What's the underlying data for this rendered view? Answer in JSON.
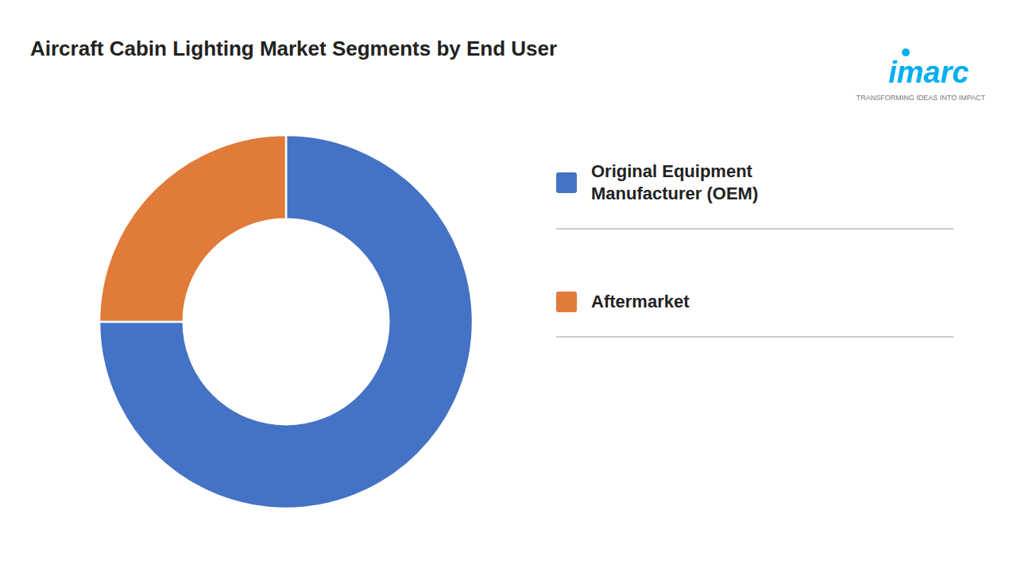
{
  "chart_data": {
    "type": "pie",
    "title": "Aircraft Cabin Lighting Market Segments by End User",
    "categories": [
      "Original Equipment\nManufacturer (OEM)",
      "Aftermarket"
    ],
    "values": [
      75,
      25
    ],
    "colors": [
      "#4472C4",
      "#E07B39"
    ],
    "legend": "right",
    "annotations": [
      "imarc",
      "TRANSFORMING IDEAS INTO IMPACT"
    ]
  }
}
